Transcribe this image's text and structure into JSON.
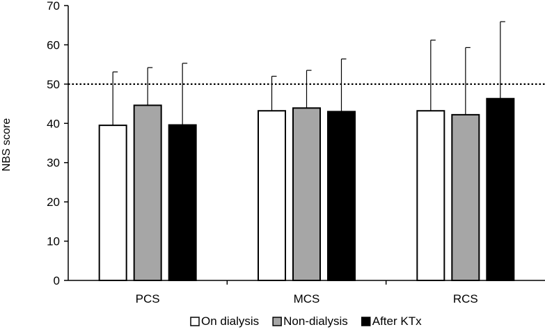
{
  "chart_data": {
    "type": "bar",
    "title": "",
    "xlabel": "",
    "ylabel": "NBS score",
    "ylim": [
      0,
      70
    ],
    "yticks": [
      0,
      10,
      20,
      30,
      40,
      50,
      60,
      70
    ],
    "categories": [
      "PCS",
      "MCS",
      "RCS"
    ],
    "series": [
      {
        "name": "On dialysis",
        "values": [
          39.5,
          43.2,
          43.2
        ],
        "error": [
          13.6,
          8.8,
          18.0
        ],
        "color": "#ffffff"
      },
      {
        "name": "Non-dialysis",
        "values": [
          44.6,
          43.9,
          42.2
        ],
        "error": [
          9.6,
          9.6,
          17.1
        ],
        "color": "#a6a6a6"
      },
      {
        "name": "After KTx",
        "values": [
          39.6,
          43.0,
          46.3
        ],
        "error": [
          15.7,
          13.4,
          19.6
        ],
        "color": "#000000"
      }
    ],
    "reference_line": {
      "value": 50,
      "style": "dotted"
    },
    "grid": false,
    "legend_position": "bottom"
  }
}
